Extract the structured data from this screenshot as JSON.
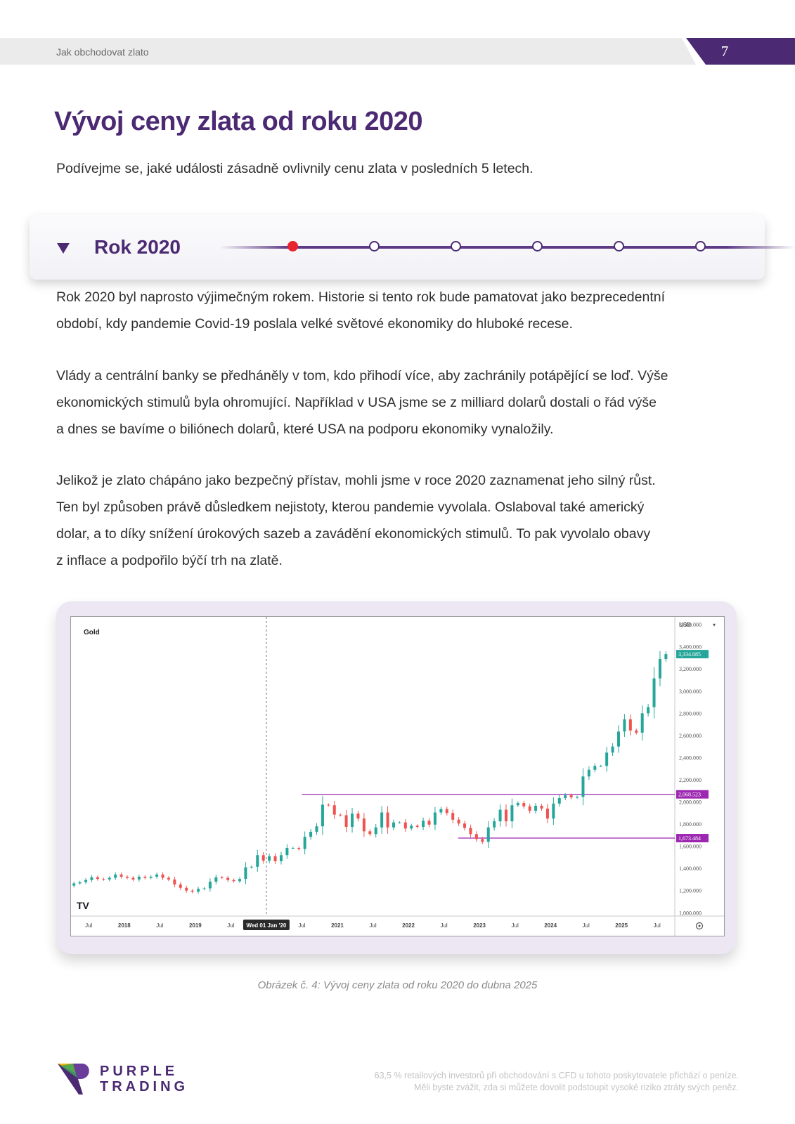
{
  "header": {
    "doc_title": "Jak obchodovat zlato",
    "page_number": "7"
  },
  "title": "Vývoj ceny zlata od roku 2020",
  "intro": "Podívejme se, jaké události zásadně ovlivnily cenu zlata v posledních 5 letech.",
  "timeline": {
    "current_label": "Rok 2020",
    "steps_total": 6,
    "active_index": 0
  },
  "paragraphs": [
    [
      "Rok 2020 byl naprosto výjimečným rokem. Historie si tento rok bude pamatovat jako bezprecedentní",
      "období, kdy pandemie Covid-19 poslala velké světové ekonomiky do hluboké recese."
    ],
    [
      "Vlády a centrální banky se předháněly v tom, kdo přihodí více, aby zachránily potápějící se loď. Výše",
      "ekonomických stimulů byla ohromující. Například v USA jsme se z milliard dolarů dostali o řád výše",
      "a dnes se bavíme o biliónech dolarů, které USA na podporu ekonomiky vynaložily."
    ],
    [
      "Jelikož je zlato chápáno jako bezpečný přístav, mohli jsme v roce 2020 zaznamenat jeho silný růst.",
      "Ten byl způsoben právě důsledkem nejistoty, kterou pandemie vyvolala. Oslaboval také americký",
      "dolar, a to díky snížení úrokových sazeb a zavádění ekonomických stimulů. To pak vyvolalo obavy",
      "z inflace a podpořilo býčí trh na zlatě."
    ]
  ],
  "chart_data": {
    "type": "candlestick",
    "instrument": "Gold",
    "currency": "USD",
    "y_ticks": [
      "3,600.000",
      "3,400.000",
      "3,200.000",
      "3,000.000",
      "2,800.000",
      "2,600.000",
      "2,400.000",
      "2,200.000",
      "2,000.000",
      "1,800.000",
      "1,600.000",
      "1,400.000",
      "1,200.000",
      "1,000.000"
    ],
    "y_tick_values": [
      3600,
      3400,
      3200,
      3000,
      2800,
      2600,
      2400,
      2200,
      2000,
      1800,
      1600,
      1400,
      1200,
      1000
    ],
    "ylim": [
      970,
      3620
    ],
    "x_labels": [
      {
        "t": 2017.5,
        "label": "Jul"
      },
      {
        "t": 2018.0,
        "label": "2018"
      },
      {
        "t": 2018.5,
        "label": "Jul"
      },
      {
        "t": 2019.0,
        "label": "2019"
      },
      {
        "t": 2019.5,
        "label": "Jul"
      },
      {
        "t": 2020.0,
        "label": "Wed 01 Jan '20"
      },
      {
        "t": 2020.5,
        "label": "Jul"
      },
      {
        "t": 2021.0,
        "label": "2021"
      },
      {
        "t": 2021.5,
        "label": "Jul"
      },
      {
        "t": 2022.0,
        "label": "2022"
      },
      {
        "t": 2022.5,
        "label": "Jul"
      },
      {
        "t": 2023.0,
        "label": "2023"
      },
      {
        "t": 2023.5,
        "label": "Jul"
      },
      {
        "t": 2024.0,
        "label": "2024"
      },
      {
        "t": 2024.5,
        "label": "Jul"
      },
      {
        "t": 2025.0,
        "label": "2025"
      },
      {
        "t": 2025.5,
        "label": "Jul"
      }
    ],
    "xlim": [
      2017.25,
      2025.75
    ],
    "crosshair_t": 2020.0,
    "last_price_label": "3,334.085",
    "last_price": 3334.085,
    "levels": [
      {
        "value": 2068.523,
        "label": "2,068.523",
        "from_t": 2020.5
      },
      {
        "value": 1673.484,
        "label": "1,673.484",
        "from_t": 2022.7
      }
    ],
    "colors": {
      "up": "#26a69a",
      "down": "#ef5350",
      "level": "#9c27b0",
      "last": "#26a69a"
    },
    "monthly_close": [
      1265,
      1275,
      1295,
      1320,
      1305,
      1300,
      1315,
      1345,
      1325,
      1315,
      1300,
      1325,
      1315,
      1325,
      1345,
      1315,
      1300,
      1255,
      1225,
      1200,
      1190,
      1215,
      1220,
      1280,
      1320,
      1315,
      1295,
      1285,
      1305,
      1410,
      1415,
      1520,
      1470,
      1510,
      1465,
      1520,
      1585,
      1585,
      1575,
      1685,
      1730,
      1780,
      1975,
      1970,
      1885,
      1880,
      1775,
      1895,
      1850,
      1735,
      1710,
      1770,
      1905,
      1770,
      1815,
      1815,
      1760,
      1785,
      1775,
      1830,
      1795,
      1905,
      1935,
      1900,
      1840,
      1805,
      1765,
      1710,
      1665,
      1640,
      1770,
      1825,
      1930,
      1825,
      1970,
      1990,
      1960,
      1920,
      1965,
      1940,
      1850,
      1985,
      2035,
      2060,
      2040,
      2045,
      2230,
      2290,
      2325,
      2325,
      2445,
      2500,
      2635,
      2745,
      2645,
      2625,
      2800,
      2855,
      3115,
      3290,
      3334.085
    ],
    "start_open": 1245
  },
  "caption": "Obrázek č. 4: Vývoj ceny zlata od roku 2020 do dubna 2025",
  "footer": {
    "logo_line1": "PURPLE",
    "logo_line2": "TRADING",
    "disclaimer_line1": "63,5 % retailových investorů při obchodování s CFD u tohoto poskytovatele přichází o peníze.",
    "disclaimer_line2": "Měli byste zvážit, zda si můžete dovolit podstoupit vysoké riziko ztráty svých peněz."
  }
}
